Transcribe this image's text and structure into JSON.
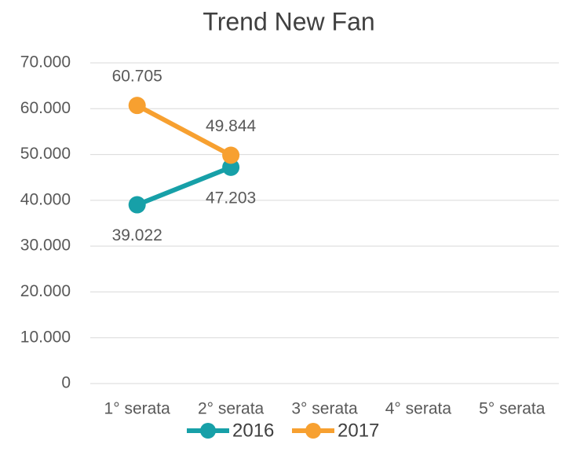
{
  "chart_data": {
    "type": "line",
    "title": "Trend New Fan",
    "categories": [
      "1° serata",
      "2° serata",
      "3° serata",
      "4° serata",
      "5° serata"
    ],
    "series": [
      {
        "name": "2016",
        "color": "#17a0a8",
        "values": [
          39022,
          47203,
          null,
          null,
          null
        ],
        "value_labels": [
          "39.022",
          "47.203",
          null,
          null,
          null
        ]
      },
      {
        "name": "2017",
        "color": "#f7a030",
        "values": [
          60705,
          49844,
          null,
          null,
          null
        ],
        "value_labels": [
          "60.705",
          "49.844",
          null,
          null,
          null
        ]
      }
    ],
    "ylim": [
      0,
      70000
    ],
    "yticks": [
      0,
      {
        "value": 10000,
        "label": "10.000"
      },
      {
        "value": 20000,
        "label": "20.000"
      },
      {
        "value": 30000,
        "label": "30.000"
      },
      {
        "value": 40000,
        "label": "40.000"
      },
      {
        "value": 50000,
        "label": "50.000"
      },
      {
        "value": 60000,
        "label": "60.000"
      },
      {
        "value": 70000,
        "label": "70.000"
      }
    ],
    "grid": true,
    "legend": "bottom"
  }
}
